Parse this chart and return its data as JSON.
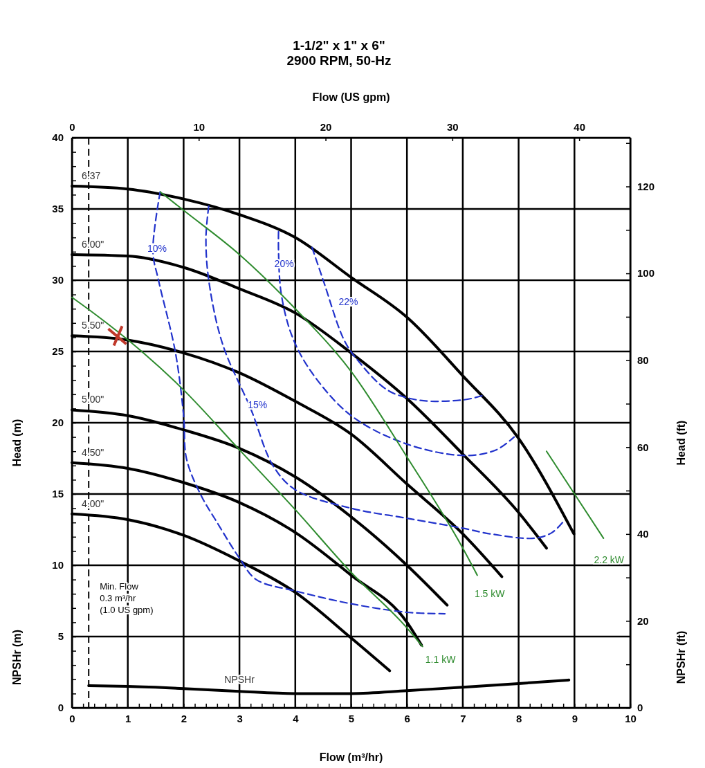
{
  "chart_data": {
    "type": "line",
    "title": "1-1/2\" x 1\" x 6\"",
    "subtitle": "2900 RPM, 50-Hz",
    "xlabel": "Flow (m³/hr)",
    "x2label": "Flow (US gpm)",
    "ylabel": "Head (m)",
    "y2label": "Head (ft)",
    "annotations": [
      "NPSHr (m)",
      "NPSHr (ft)"
    ],
    "xlim": [
      0,
      10
    ],
    "ylim": [
      0,
      40
    ],
    "x2lim": [
      0,
      44.03
    ],
    "y2lim": [
      0,
      131.23
    ],
    "xticks": [
      0,
      1,
      2,
      3,
      4,
      5,
      6,
      7,
      8,
      9,
      10,
      {
        "value": 0.2,
        "label": null
      },
      {
        "value": 0.4,
        "label": null
      },
      {
        "value": 0.6,
        "label": null
      },
      {
        "value": 0.8,
        "label": null
      },
      {
        "value": 1.2,
        "label": null
      },
      {
        "value": 1.4,
        "label": null
      },
      {
        "value": 1.6,
        "label": null
      },
      {
        "value": 1.8,
        "label": null
      },
      {
        "value": 2.2,
        "label": null
      },
      {
        "value": 2.4,
        "label": null
      },
      {
        "value": 2.6,
        "label": null
      },
      {
        "value": 2.8,
        "label": null
      },
      {
        "value": 3.2,
        "label": null
      },
      {
        "value": 3.4,
        "label": null
      },
      {
        "value": 3.6,
        "label": null
      },
      {
        "value": 3.8,
        "label": null
      },
      {
        "value": 4.2,
        "label": null
      },
      {
        "value": 4.4,
        "label": null
      },
      {
        "value": 4.6,
        "label": null
      },
      {
        "value": 4.8,
        "label": null
      },
      {
        "value": 5.2,
        "label": null
      },
      {
        "value": 5.4,
        "label": null
      },
      {
        "value": 5.6,
        "label": null
      },
      {
        "value": 5.8,
        "label": null
      },
      {
        "value": 6.2,
        "label": null
      },
      {
        "value": 6.4,
        "label": null
      },
      {
        "value": 6.6,
        "label": null
      },
      {
        "value": 6.8,
        "label": null
      },
      {
        "value": 7.2,
        "label": null
      },
      {
        "value": 7.4,
        "label": null
      },
      {
        "value": 7.6,
        "label": null
      },
      {
        "value": 7.8,
        "label": null
      },
      {
        "value": 8.2,
        "label": null
      },
      {
        "value": 8.4,
        "label": null
      },
      {
        "value": 8.6,
        "label": null
      },
      {
        "value": 8.8,
        "label": null
      },
      {
        "value": 9.2,
        "label": null
      },
      {
        "value": 9.4,
        "label": null
      },
      {
        "value": 9.6,
        "label": null
      },
      {
        "value": 9.8,
        "label": null
      }
    ],
    "yticks": [
      0,
      5,
      10,
      15,
      20,
      25,
      30,
      35,
      40,
      {
        "value": 1,
        "label": null
      },
      {
        "value": 2,
        "label": null
      },
      {
        "value": 3,
        "label": null
      },
      {
        "value": 4,
        "label": null
      },
      {
        "value": 6,
        "label": null
      },
      {
        "value": 7,
        "label": null
      },
      {
        "value": 8,
        "label": null
      },
      {
        "value": 9,
        "label": null
      },
      {
        "value": 11,
        "label": null
      },
      {
        "value": 12,
        "label": null
      },
      {
        "value": 13,
        "label": null
      },
      {
        "value": 14,
        "label": null
      },
      {
        "value": 16,
        "label": null
      },
      {
        "value": 17,
        "label": null
      },
      {
        "value": 18,
        "label": null
      },
      {
        "value": 19,
        "label": null
      },
      {
        "value": 21,
        "label": null
      },
      {
        "value": 22,
        "label": null
      },
      {
        "value": 23,
        "label": null
      },
      {
        "value": 24,
        "label": null
      },
      {
        "value": 26,
        "label": null
      },
      {
        "value": 27,
        "label": null
      },
      {
        "value": 28,
        "label": null
      },
      {
        "value": 29,
        "label": null
      },
      {
        "value": 31,
        "label": null
      },
      {
        "value": 32,
        "label": null
      },
      {
        "value": 33,
        "label": null
      },
      {
        "value": 34,
        "label": null
      },
      {
        "value": 36,
        "label": null
      },
      {
        "value": 37,
        "label": null
      },
      {
        "value": 38,
        "label": null
      },
      {
        "value": 39,
        "label": null
      }
    ],
    "x2ticks": [
      0,
      10,
      20,
      30,
      40
    ],
    "y2ticks": [
      0,
      20,
      40,
      60,
      80,
      100,
      120,
      {
        "value": 10,
        "label": null
      },
      {
        "value": 30,
        "label": null
      },
      {
        "value": 50,
        "label": null
      },
      {
        "value": 70,
        "label": null
      },
      {
        "value": 90,
        "label": null
      },
      {
        "value": 110,
        "label": null
      },
      {
        "value": 130,
        "label": null
      }
    ],
    "grid": true,
    "marker": "none",
    "ref_lines": [
      {
        "axis": "x",
        "value": 0.3,
        "label": "Min. Flow\n0.3 m³/hr\n(1.0 US gpm)",
        "line_style": "dashed",
        "color": "#000000"
      }
    ],
    "series": [
      {
        "name": "6.37",
        "color": "#000000",
        "line_style": "solid",
        "x": [
          0,
          1,
          2,
          3,
          4,
          5,
          6,
          7,
          8,
          8.99
        ],
        "values": [
          36.6,
          36.4,
          35.7,
          34.6,
          33.0,
          30.2,
          27.4,
          23.3,
          18.9,
          12.2
        ]
      },
      {
        "name": "6.00\"",
        "color": "#000000",
        "line_style": "solid",
        "x": [
          0,
          1,
          2,
          3,
          4,
          5,
          6,
          7,
          8,
          8.5
        ],
        "values": [
          31.8,
          31.7,
          30.9,
          29.4,
          27.7,
          24.9,
          21.7,
          17.8,
          13.7,
          11.2
        ]
      },
      {
        "name": "5.50\"",
        "color": "#000000",
        "line_style": "solid",
        "x": [
          0,
          1,
          2,
          3,
          4,
          5,
          6,
          7,
          7.7
        ],
        "values": [
          26.1,
          25.8,
          24.9,
          23.5,
          21.5,
          19.2,
          15.7,
          12.2,
          9.2
        ]
      },
      {
        "name": "5.00\"",
        "color": "#000000",
        "line_style": "solid",
        "x": [
          0,
          1,
          2,
          3,
          4,
          5,
          6,
          6.72
        ],
        "values": [
          20.9,
          20.5,
          19.5,
          18.2,
          16.2,
          13.4,
          10.0,
          7.2
        ]
      },
      {
        "name": "4.50\"",
        "color": "#000000",
        "line_style": "solid",
        "x": [
          0,
          1,
          2,
          3,
          4,
          5,
          6,
          6.26
        ],
        "values": [
          17.2,
          16.8,
          15.8,
          14.4,
          12.3,
          9.3,
          6.0,
          4.4
        ]
      },
      {
        "name": "4.00\"",
        "color": "#000000",
        "line_style": "solid",
        "x": [
          0,
          1,
          2,
          3,
          4,
          5,
          5.69
        ],
        "values": [
          13.6,
          13.2,
          12.1,
          10.3,
          8.1,
          4.9,
          2.6
        ]
      },
      {
        "name": "10%",
        "color": "#2233cc",
        "line_style": "dashed",
        "x": [
          1.58,
          1.45,
          1.55,
          1.85,
          2.0,
          2.05,
          2.3,
          2.6,
          3.0,
          3.3,
          4,
          5,
          6,
          6.68
        ],
        "values": [
          36.2,
          32,
          30,
          25,
          20.5,
          17.5,
          15,
          13,
          10.5,
          9,
          8.2,
          7.3,
          6.7,
          6.6
        ]
      },
      {
        "name": "15%",
        "color": "#2233cc",
        "line_style": "dashed",
        "x": [
          2.45,
          2.4,
          2.45,
          2.7,
          3.2,
          3.6,
          4,
          5,
          6,
          7,
          7.5,
          8.29,
          8.6,
          8.83
        ],
        "values": [
          35.2,
          33,
          30,
          25.5,
          21,
          17,
          15.3,
          14,
          13.3,
          12.6,
          12.2,
          11.9,
          12.3,
          13.2
        ]
      },
      {
        "name": "20%",
        "color": "#2233cc",
        "line_style": "dashed",
        "x": [
          3.7,
          3.7,
          3.75,
          3.95,
          4.3,
          5,
          6,
          7.05,
          7.6,
          7.92
        ],
        "values": [
          33.4,
          32,
          29,
          26,
          23.5,
          20.5,
          18.5,
          17.7,
          18.1,
          19.0
        ]
      },
      {
        "name": "22%",
        "color": "#2233cc",
        "line_style": "dashed",
        "x": [
          4.3,
          4.5,
          4.85,
          5.2,
          5.8,
          6.5,
          7.0,
          7.35
        ],
        "values": [
          32.3,
          30,
          26,
          24,
          22,
          21.5,
          21.6,
          21.9
        ]
      },
      {
        "name": "1.1 kW",
        "color": "#2e8b2e",
        "line_style": "solid",
        "x": [
          0,
          0.42,
          1.1,
          2,
          3,
          4,
          5,
          6,
          6.28
        ],
        "values": [
          28.8,
          27.6,
          25.5,
          22.3,
          18.1,
          13.9,
          9.5,
          5.6,
          4.3
        ]
      },
      {
        "name": "1.5 kW",
        "color": "#2e8b2e",
        "line_style": "solid",
        "x": [
          1.58,
          2,
          3,
          4,
          5,
          6,
          7,
          7.26
        ],
        "values": [
          36.2,
          34.9,
          31.8,
          28.0,
          23.6,
          17.6,
          11.2,
          9.3
        ]
      },
      {
        "name": "2.2 kW",
        "color": "#2e8b2e",
        "line_style": "solid",
        "x": [
          8.5,
          9.52
        ],
        "values": [
          18.0,
          11.9
        ]
      },
      {
        "name": "NPSHr",
        "color": "#000000",
        "line_style": "solid",
        "x": [
          0.3,
          1,
          2,
          3,
          4,
          5,
          6,
          7,
          8,
          8.9
        ],
        "values": [
          1.55,
          1.5,
          1.35,
          1.15,
          1.0,
          1.0,
          1.2,
          1.45,
          1.7,
          1.95
        ]
      }
    ]
  }
}
